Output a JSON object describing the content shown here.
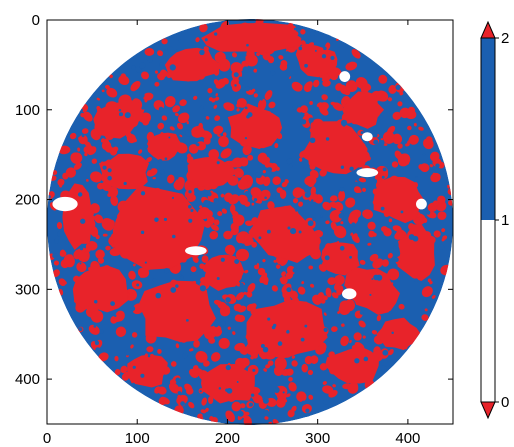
{
  "chart_data": {
    "type": "heatmap",
    "title": "",
    "xlabel": "",
    "ylabel": "",
    "xlim": [
      0,
      450
    ],
    "ylim": [
      450,
      0
    ],
    "x_ticks": [
      0,
      100,
      200,
      300,
      400
    ],
    "y_ticks": [
      0,
      100,
      200,
      300,
      400
    ],
    "x_tick_labels": [
      "0",
      "100",
      "200",
      "300",
      "400"
    ],
    "y_tick_labels": [
      "0",
      "100",
      "200",
      "300",
      "400"
    ],
    "specimen_region": {
      "shape": "circle",
      "center": [
        225,
        225
      ],
      "radius": 225
    },
    "classes": [
      {
        "value": 0,
        "color": "#ffffff"
      },
      {
        "value": 1,
        "color": "#1b5fb0"
      },
      {
        "value": 2,
        "color": "#e8232a"
      }
    ],
    "colorbar": {
      "range": [
        0,
        2
      ],
      "ticks": [
        0,
        1,
        2
      ],
      "tick_labels": [
        "0",
        "1",
        "2"
      ],
      "extend": "both",
      "under_color": "#e8232a",
      "over_color": "#e8232a",
      "segments": [
        {
          "from": 0,
          "to": 1,
          "color": "#ffffff"
        },
        {
          "from": 1,
          "to": 2,
          "color": "#1b5fb0"
        }
      ]
    },
    "aggregates_approx": [
      {
        "cx": 120,
        "cy": 230,
        "rx": 55,
        "ry": 45,
        "rot": -5
      },
      {
        "cx": 145,
        "cy": 325,
        "rx": 45,
        "ry": 38,
        "rot": 10
      },
      {
        "cx": 265,
        "cy": 345,
        "rx": 45,
        "ry": 35,
        "rot": -10
      },
      {
        "cx": 230,
        "cy": 20,
        "rx": 55,
        "ry": 18,
        "rot": 0
      },
      {
        "cx": 320,
        "cy": 145,
        "rx": 35,
        "ry": 30,
        "rot": 20
      },
      {
        "cx": 265,
        "cy": 240,
        "rx": 40,
        "ry": 30,
        "rot": 25
      },
      {
        "cx": 160,
        "cy": 50,
        "rx": 30,
        "ry": 20,
        "rot": 0
      },
      {
        "cx": 300,
        "cy": 45,
        "rx": 25,
        "ry": 18,
        "rot": 15
      },
      {
        "cx": 80,
        "cy": 110,
        "rx": 28,
        "ry": 20,
        "rot": -20
      },
      {
        "cx": 360,
        "cy": 300,
        "rx": 30,
        "ry": 25,
        "rot": 30
      },
      {
        "cx": 390,
        "cy": 200,
        "rx": 28,
        "ry": 24,
        "rot": 0
      },
      {
        "cx": 350,
        "cy": 100,
        "rx": 22,
        "ry": 20,
        "rot": 0
      },
      {
        "cx": 85,
        "cy": 170,
        "rx": 28,
        "ry": 22,
        "rot": 0
      },
      {
        "cx": 60,
        "cy": 300,
        "rx": 30,
        "ry": 26,
        "rot": 0
      },
      {
        "cx": 200,
        "cy": 405,
        "rx": 35,
        "ry": 22,
        "rot": 0
      },
      {
        "cx": 340,
        "cy": 385,
        "rx": 30,
        "ry": 20,
        "rot": 0
      },
      {
        "cx": 410,
        "cy": 260,
        "rx": 22,
        "ry": 30,
        "rot": 0
      },
      {
        "cx": 230,
        "cy": 120,
        "rx": 30,
        "ry": 25,
        "rot": 0
      },
      {
        "cx": 180,
        "cy": 170,
        "rx": 25,
        "ry": 18,
        "rot": 0
      },
      {
        "cx": 110,
        "cy": 390,
        "rx": 25,
        "ry": 18,
        "rot": 0
      },
      {
        "cx": 390,
        "cy": 350,
        "rx": 24,
        "ry": 18,
        "rot": 0
      },
      {
        "cx": 35,
        "cy": 220,
        "rx": 18,
        "ry": 35,
        "rot": 0
      },
      {
        "cx": 325,
        "cy": 265,
        "rx": 22,
        "ry": 18,
        "rot": 0
      },
      {
        "cx": 195,
        "cy": 280,
        "rx": 22,
        "ry": 22,
        "rot": 0
      },
      {
        "cx": 130,
        "cy": 140,
        "rx": 20,
        "ry": 16,
        "rot": 0
      }
    ],
    "pores_approx": [
      {
        "cx": 20,
        "cy": 205,
        "rx": 14,
        "ry": 8
      },
      {
        "cx": 330,
        "cy": 63,
        "rx": 6,
        "ry": 6
      },
      {
        "cx": 355,
        "cy": 170,
        "rx": 12,
        "ry": 5
      },
      {
        "cx": 165,
        "cy": 257,
        "rx": 12,
        "ry": 5
      },
      {
        "cx": 335,
        "cy": 305,
        "rx": 8,
        "ry": 6
      },
      {
        "cx": 415,
        "cy": 205,
        "rx": 6,
        "ry": 6
      },
      {
        "cx": 355,
        "cy": 130,
        "rx": 6,
        "ry": 5
      }
    ]
  }
}
